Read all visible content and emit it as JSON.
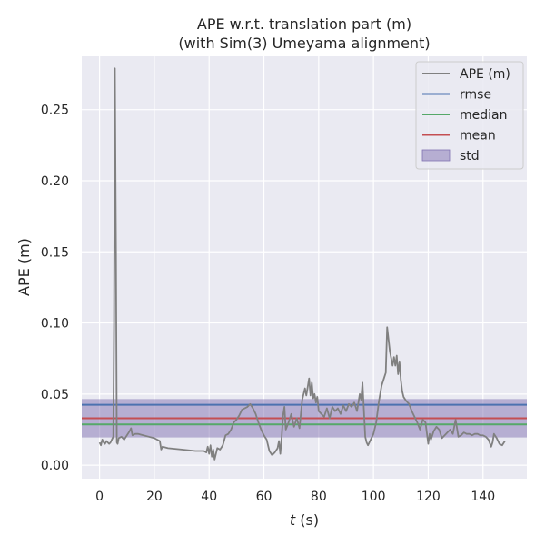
{
  "chart_data": {
    "type": "line",
    "title": "APE w.r.t. translation part (m)",
    "subtitle": "(with Sim(3) Umeyama alignment)",
    "xlabel_italic": "t",
    "xlabel_rest": " (s)",
    "ylabel": "APE (m)",
    "xlim": [
      -6.5,
      156
    ],
    "ylim": [
      -0.0095,
      0.2875
    ],
    "xticks": [
      0,
      20,
      40,
      60,
      80,
      100,
      120,
      140
    ],
    "yticks": [
      0.0,
      0.05,
      0.1,
      0.15,
      0.2,
      0.25
    ],
    "ytick_labels": [
      "0.00",
      "0.05",
      "0.10",
      "0.15",
      "0.20",
      "0.25"
    ],
    "grid": true,
    "legend_position": "upper right",
    "colors": {
      "background": "#eaeaf2",
      "grid": "#ffffff",
      "ape": "#808080",
      "rmse": "#4c72b0",
      "median": "#55a868",
      "mean": "#c44e52",
      "std": "#8172b2"
    },
    "stats": {
      "rmse": 0.0425,
      "median": 0.0287,
      "mean": 0.033,
      "std_low": 0.0195,
      "std_high": 0.0465
    },
    "legend": [
      {
        "key": "ape",
        "label": "APE (m)",
        "kind": "line"
      },
      {
        "key": "rmse",
        "label": "rmse",
        "kind": "line"
      },
      {
        "key": "median",
        "label": "median",
        "kind": "line"
      },
      {
        "key": "mean",
        "label": "mean",
        "kind": "line"
      },
      {
        "key": "std",
        "label": "std",
        "kind": "patch"
      }
    ],
    "series": [
      {
        "x": [
          0,
          0.5,
          1,
          1.5,
          2,
          2.5,
          3,
          3.5,
          4,
          4.5,
          5.0,
          5.3,
          5.6,
          6.0,
          6.3,
          6.6,
          7,
          8,
          9,
          10,
          11,
          11.5,
          12,
          13,
          14,
          16,
          18,
          20,
          22,
          22.5,
          23,
          25,
          30,
          35,
          38,
          39,
          39.5,
          40,
          40.5,
          41,
          41.5,
          42,
          42.5,
          43,
          44,
          45,
          46,
          47,
          48,
          49,
          50,
          51,
          52,
          53,
          54,
          55,
          56,
          57,
          58,
          59,
          60,
          61,
          62,
          63,
          64,
          65,
          65.5,
          66,
          66.5,
          67,
          67.5,
          68,
          69,
          70,
          71,
          72,
          73,
          74,
          75,
          75.5,
          76,
          76.5,
          77,
          77.5,
          78,
          78.5,
          79,
          79.5,
          80,
          81,
          82,
          83,
          84,
          85,
          86,
          87,
          88,
          89,
          90,
          91,
          92,
          93,
          94,
          95,
          95.5,
          96,
          96.5,
          97,
          97.5,
          98,
          99,
          100,
          101,
          102,
          103,
          104,
          104.5,
          105,
          106,
          107,
          107.5,
          108,
          108.5,
          109,
          109.5,
          110,
          110.5,
          111,
          112,
          113,
          114,
          115,
          116,
          117,
          118,
          119,
          120,
          120.5,
          121,
          122,
          123,
          124,
          125,
          126,
          127,
          128,
          129,
          130,
          131,
          132,
          133,
          134,
          135,
          136,
          137,
          138,
          139,
          140,
          141,
          142,
          143,
          143.5,
          144,
          145,
          146,
          147,
          148
        ],
        "y": [
          0.016,
          0.014,
          0.018,
          0.016,
          0.015,
          0.017,
          0.016,
          0.015,
          0.016,
          0.018,
          0.02,
          0.1,
          0.279,
          0.15,
          0.016,
          0.015,
          0.019,
          0.02,
          0.018,
          0.021,
          0.024,
          0.026,
          0.021,
          0.022,
          0.022,
          0.021,
          0.02,
          0.019,
          0.017,
          0.011,
          0.013,
          0.012,
          0.011,
          0.01,
          0.01,
          0.009,
          0.013,
          0.008,
          0.014,
          0.006,
          0.011,
          0.004,
          0.008,
          0.012,
          0.011,
          0.014,
          0.021,
          0.022,
          0.025,
          0.03,
          0.032,
          0.035,
          0.039,
          0.04,
          0.041,
          0.043,
          0.04,
          0.036,
          0.03,
          0.025,
          0.021,
          0.018,
          0.01,
          0.007,
          0.009,
          0.012,
          0.017,
          0.008,
          0.02,
          0.035,
          0.041,
          0.025,
          0.03,
          0.036,
          0.027,
          0.033,
          0.026,
          0.046,
          0.054,
          0.049,
          0.055,
          0.061,
          0.049,
          0.058,
          0.047,
          0.05,
          0.044,
          0.048,
          0.038,
          0.036,
          0.034,
          0.04,
          0.033,
          0.041,
          0.038,
          0.04,
          0.036,
          0.042,
          0.038,
          0.043,
          0.041,
          0.044,
          0.038,
          0.05,
          0.046,
          0.058,
          0.039,
          0.02,
          0.016,
          0.014,
          0.018,
          0.022,
          0.03,
          0.045,
          0.056,
          0.062,
          0.065,
          0.097,
          0.08,
          0.07,
          0.076,
          0.07,
          0.077,
          0.064,
          0.073,
          0.06,
          0.052,
          0.048,
          0.045,
          0.043,
          0.038,
          0.034,
          0.03,
          0.025,
          0.032,
          0.03,
          0.015,
          0.022,
          0.018,
          0.024,
          0.027,
          0.025,
          0.019,
          0.021,
          0.023,
          0.025,
          0.022,
          0.032,
          0.02,
          0.021,
          0.023,
          0.022,
          0.022,
          0.021,
          0.022,
          0.022,
          0.021,
          0.021,
          0.02,
          0.018,
          0.013,
          0.016,
          0.022,
          0.019,
          0.015,
          0.014,
          0.017
        ]
      }
    ]
  }
}
